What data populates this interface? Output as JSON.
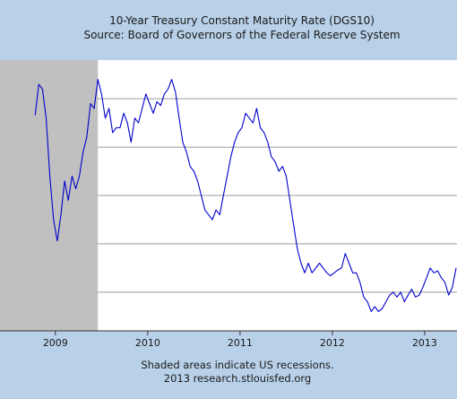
{
  "chart_data": {
    "type": "line",
    "title": "10-Year Treasury Constant Maturity Rate (DGS10)",
    "subtitle": "Source: Board of Governors of the Federal Reserve System",
    "footer_note": "Shaded areas indicate US recessions.",
    "footer_credit": "2013 research.stlouisfed.org",
    "x_tick_labels": [
      "2009",
      "2010",
      "2011",
      "2012",
      "2013"
    ],
    "x_ticks": [
      2009.0,
      2010.0,
      2011.0,
      2012.0,
      2013.0
    ],
    "xlim": [
      2008.4,
      2013.35
    ],
    "ylim": [
      1.35,
      4.15
    ],
    "y_gridlines": [
      1.75,
      2.25,
      2.75,
      3.25,
      3.75
    ],
    "recession": {
      "start": 2008.4,
      "end": 2009.46
    },
    "series": [
      {
        "color": "#0000cc",
        "x": [
          2008.78,
          2008.82,
          2008.86,
          2008.9,
          2008.94,
          2008.98,
          2009.02,
          2009.06,
          2009.1,
          2009.14,
          2009.18,
          2009.22,
          2009.26,
          2009.3,
          2009.34,
          2009.38,
          2009.42,
          2009.46,
          2009.5,
          2009.54,
          2009.58,
          2009.62,
          2009.66,
          2009.7,
          2009.74,
          2009.78,
          2009.82,
          2009.86,
          2009.9,
          2009.94,
          2009.98,
          2010.02,
          2010.06,
          2010.1,
          2010.14,
          2010.18,
          2010.22,
          2010.26,
          2010.3,
          2010.34,
          2010.38,
          2010.42,
          2010.46,
          2010.5,
          2010.54,
          2010.58,
          2010.62,
          2010.66,
          2010.7,
          2010.74,
          2010.78,
          2010.82,
          2010.86,
          2010.9,
          2010.94,
          2010.98,
          2011.02,
          2011.06,
          2011.1,
          2011.14,
          2011.18,
          2011.22,
          2011.26,
          2011.3,
          2011.34,
          2011.38,
          2011.42,
          2011.46,
          2011.5,
          2011.54,
          2011.58,
          2011.62,
          2011.66,
          2011.7,
          2011.74,
          2011.78,
          2011.82,
          2011.86,
          2011.9,
          2011.94,
          2011.98,
          2012.02,
          2012.06,
          2012.1,
          2012.14,
          2012.18,
          2012.22,
          2012.26,
          2012.3,
          2012.34,
          2012.38,
          2012.42,
          2012.46,
          2012.5,
          2012.54,
          2012.58,
          2012.62,
          2012.66,
          2012.7,
          2012.74,
          2012.78,
          2012.82,
          2012.86,
          2012.9,
          2012.94,
          2012.98,
          2013.02,
          2013.06,
          2013.1,
          2013.14,
          2013.18,
          2013.22,
          2013.26,
          2013.3,
          2013.34
        ],
        "y": [
          3.58,
          3.9,
          3.85,
          3.55,
          2.95,
          2.5,
          2.28,
          2.55,
          2.9,
          2.7,
          2.95,
          2.82,
          2.95,
          3.2,
          3.35,
          3.7,
          3.65,
          3.95,
          3.8,
          3.55,
          3.65,
          3.4,
          3.45,
          3.45,
          3.6,
          3.5,
          3.3,
          3.55,
          3.5,
          3.65,
          3.8,
          3.7,
          3.6,
          3.72,
          3.68,
          3.8,
          3.85,
          3.95,
          3.82,
          3.55,
          3.3,
          3.2,
          3.05,
          3.0,
          2.9,
          2.75,
          2.6,
          2.55,
          2.5,
          2.6,
          2.55,
          2.75,
          2.95,
          3.15,
          3.3,
          3.4,
          3.45,
          3.6,
          3.55,
          3.5,
          3.65,
          3.45,
          3.4,
          3.3,
          3.15,
          3.1,
          3.0,
          3.05,
          2.95,
          2.7,
          2.45,
          2.2,
          2.05,
          1.95,
          2.05,
          1.95,
          2.0,
          2.05,
          2.0,
          1.95,
          1.92,
          1.95,
          1.98,
          2.0,
          2.15,
          2.05,
          1.95,
          1.95,
          1.85,
          1.7,
          1.65,
          1.55,
          1.6,
          1.55,
          1.58,
          1.65,
          1.72,
          1.75,
          1.7,
          1.75,
          1.65,
          1.72,
          1.78,
          1.7,
          1.72,
          1.8,
          1.9,
          2.0,
          1.95,
          1.97,
          1.9,
          1.85,
          1.72,
          1.8,
          2.0
        ]
      }
    ]
  }
}
